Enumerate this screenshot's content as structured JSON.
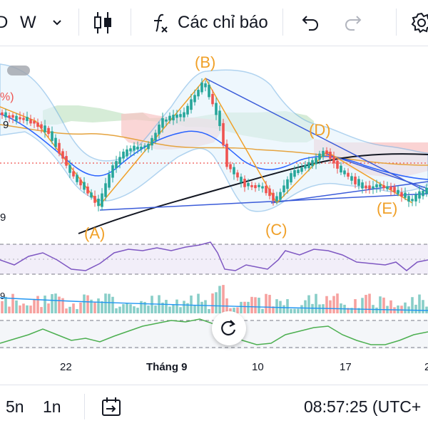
{
  "toolbar": {
    "interval_partial": "D",
    "interval": "W",
    "indicators_label": "Các chỉ báo"
  },
  "chart": {
    "left_edge_labels": [
      "%)",
      "9",
      "9",
      "9"
    ],
    "wave_labels": {
      "a": "(A)",
      "b": "(B)",
      "c": "(C)",
      "d": "(D)",
      "e": "(E)"
    },
    "time_axis": [
      "22",
      "Tháng 9",
      "10",
      "17",
      "2"
    ],
    "colors": {
      "up": "#26a69a",
      "down": "#ef5350",
      "wave": "#f0a028",
      "trend": "#3a5bd9",
      "bollinger": "#7cb6e6",
      "rsi": "#7e57c2",
      "oscillator": "#4caf50"
    }
  },
  "bottombar": {
    "range_5d": "5n",
    "range_1d": "1n",
    "clock": "08:57:25 (UTC+"
  }
}
